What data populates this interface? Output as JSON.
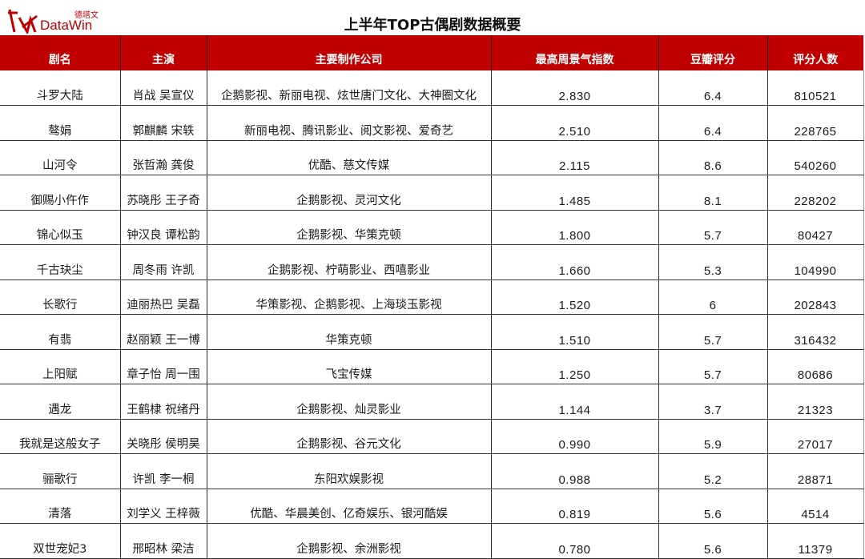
{
  "logo": {
    "cn": "德塔文",
    "en": "DataWin"
  },
  "title": "上半年TOP古偶剧数据概要",
  "colors": {
    "header_bg": "#c00000",
    "logo": "#c00000"
  },
  "columns": [
    "剧名",
    "主演",
    "主要制作公司",
    "最高周景气指数",
    "豆瓣评分",
    "评分人数"
  ],
  "rows": [
    [
      "斗罗大陆",
      "肖战 吴宣仪",
      "企鹅影视、新丽电视、炫世唐门文化、大神圈文化",
      "2.830",
      "6.4",
      "810521"
    ],
    [
      "骜娟",
      "郭麒麟 宋轶",
      "新丽电视、腾讯影业、阅文影视、爱奇艺",
      "2.510",
      "6.4",
      "228765"
    ],
    [
      "山河令",
      "张哲瀚 龚俊",
      "优酷、慈文传媒",
      "2.115",
      "8.6",
      "540260"
    ],
    [
      "御赐小仵作",
      "苏晓彤 王子奇",
      "企鹅影视、灵河文化",
      "1.485",
      "8.1",
      "228202"
    ],
    [
      "锦心似玉",
      "钟汉良 谭松韵",
      "企鹅影视、华策克顿",
      "1.800",
      "5.7",
      "80427"
    ],
    [
      "千古玦尘",
      "周冬雨 许凯",
      "企鹅影视、柠萌影业、西嘻影业",
      "1.660",
      "5.3",
      "104990"
    ],
    [
      "长歌行",
      "迪丽热巴 吴磊",
      "华策影视、企鹅影视、上海琰玉影视",
      "1.520",
      "6",
      "202843"
    ],
    [
      "有翡",
      "赵丽颖 王一博",
      "华策克顿",
      "1.510",
      "5.7",
      "316432"
    ],
    [
      "上阳赋",
      "章子怡 周一围",
      "飞宝传媒",
      "1.250",
      "5.7",
      "80686"
    ],
    [
      "遇龙",
      "王鹤棣 祝绪丹",
      "企鹅影视、灿灵影业",
      "1.144",
      "3.7",
      "21323"
    ],
    [
      "我就是这般女子",
      "关晓彤 侯明昊",
      "企鹅影视、谷元文化",
      "0.990",
      "5.9",
      "27017"
    ],
    [
      "骊歌行",
      "许凯 李一桐",
      "东阳欢娱影视",
      "0.988",
      "5.2",
      "28871"
    ],
    [
      "清落",
      "刘学义 王梓薇",
      "优酷、华晨美创、亿奇娱乐、银河酷娱",
      "0.819",
      "5.6",
      "4514"
    ],
    [
      "双世宠妃3",
      "邢昭林 梁洁",
      "企鹅影视、余洲影视",
      "0.780",
      "5.6",
      "11379"
    ]
  ]
}
